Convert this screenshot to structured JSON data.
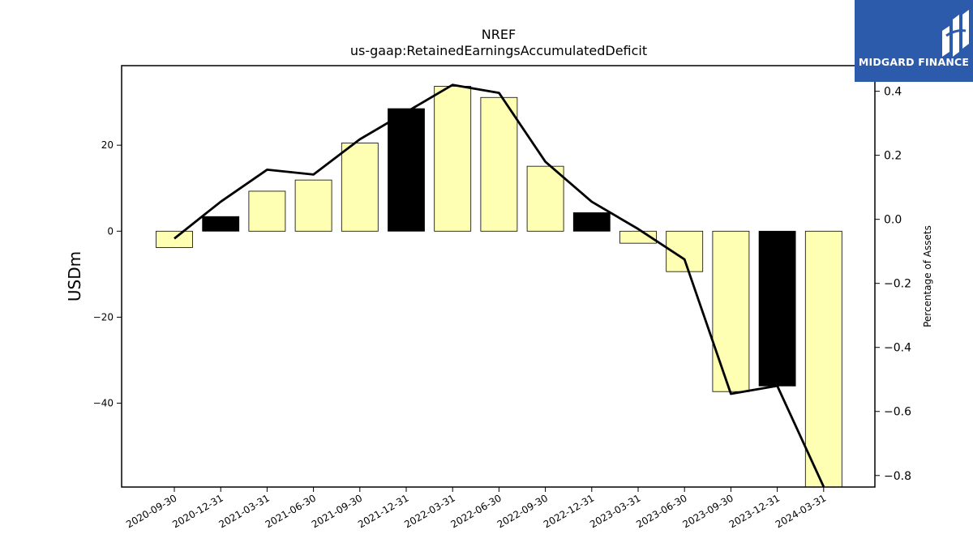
{
  "chart_data": {
    "type": "bar",
    "title": "NREF",
    "subtitle": "us-gaap:RetainedEarningsAccumulatedDeficit",
    "ylabel": "USDm",
    "y2label": "Percentage of Assets",
    "categories": [
      "2020-09-30",
      "2020-12-31",
      "2021-03-31",
      "2021-06-30",
      "2021-09-30",
      "2021-12-31",
      "2022-03-31",
      "2022-06-30",
      "2022-09-30",
      "2022-12-31",
      "2023-03-31",
      "2023-06-30",
      "2023-09-30",
      "2023-12-31",
      "2024-03-31"
    ],
    "series": [
      {
        "type": "bar",
        "axis": "left",
        "values": [
          -3.8,
          3.4,
          9.3,
          11.9,
          20.5,
          28.5,
          33.7,
          31.1,
          15.1,
          4.3,
          -2.8,
          -9.4,
          -37.3,
          -36.0,
          -59.5
        ],
        "colors": [
          "#ffffb3",
          "#000000",
          "#ffffb3",
          "#ffffb3",
          "#ffffb3",
          "#000000",
          "#ffffb3",
          "#ffffb3",
          "#ffffb3",
          "#000000",
          "#ffffb3",
          "#ffffb3",
          "#ffffb3",
          "#000000",
          "#ffffb3"
        ]
      },
      {
        "type": "line",
        "axis": "right",
        "color": "#000000",
        "values": [
          -0.06,
          0.055,
          0.155,
          0.14,
          0.25,
          0.335,
          0.42,
          0.395,
          0.18,
          0.055,
          -0.03,
          -0.125,
          -0.545,
          -0.52,
          -0.835
        ]
      }
    ],
    "ylim": [
      -59.5,
      38.5
    ],
    "y2lim": [
      -0.836,
      0.48
    ],
    "yticks": [
      -40,
      -20,
      0,
      20
    ],
    "ytick_labels": [
      "−40",
      "−20",
      "0",
      "20"
    ],
    "y2ticks": [
      -0.8,
      -0.6,
      -0.4,
      -0.2,
      0.0,
      0.2,
      0.4
    ],
    "y2tick_labels": [
      "−0.8",
      "−0.6",
      "−0.4",
      "−0.2",
      "0.0",
      "0.2",
      "0.4"
    ],
    "grid": false,
    "legend": "none"
  },
  "logo": {
    "text": "MIDGARD FINANCE",
    "bg": "#2d5bab",
    "fg": "#ffffff",
    "icon": "midgard-logo-icon"
  }
}
